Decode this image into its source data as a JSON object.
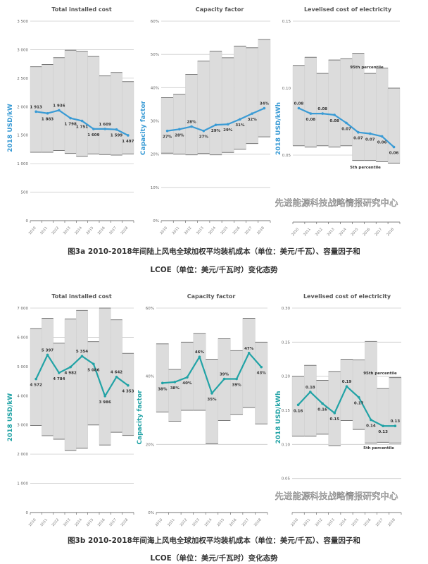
{
  "captions": {
    "fig3a_line1": "图3a  2010-2018年间陆上风电全球加权平均装机成本（单位：美元/千瓦）、容量因子和",
    "fig3a_line2": "LCOE（单位：美元/千瓦时）变化态势",
    "fig3b_line1": "图3b  2010-2018年间海上风电全球加权平均装机成本（单位：美元/千瓦）、容量因子和",
    "fig3b_line2": "LCOE（单位：美元/千瓦时）变化态势"
  },
  "watermark": "先进能源科技战略情报研究中心",
  "colors": {
    "onshore_line": "#3a9bd5",
    "offshore_line": "#22a3a6",
    "band": "#dcdcdc",
    "band_edge": "#777777",
    "grid": "#cccccc"
  },
  "chart_data": [
    {
      "type": "line",
      "title": "Total installed cost",
      "ylabel": "2018 USD/kW",
      "ylim": [
        0,
        3500
      ],
      "yticks": [
        0,
        500,
        1000,
        1500,
        2000,
        2500,
        3000,
        3500
      ],
      "ytick_labels": [
        "0",
        "500",
        "1 000",
        "1 500",
        "2 000",
        "2 500",
        "3 000",
        "3 500"
      ],
      "categories": [
        "2010",
        "2011",
        "2012",
        "2013",
        "2014",
        "2015",
        "2016",
        "2017",
        "2018"
      ],
      "values": [
        1913,
        1883,
        1936,
        1798,
        1751,
        1609,
        1609,
        1599,
        1497
      ],
      "labels": [
        "1 913",
        "1 883",
        "1 936",
        "1 798",
        "1 751",
        "1 609",
        "1 609",
        "1 599",
        "1 497"
      ],
      "upper": [
        2700,
        2740,
        2860,
        2990,
        2970,
        2880,
        2540,
        2600,
        2440
      ],
      "lower": [
        1200,
        1200,
        1230,
        1180,
        1130,
        1170,
        1160,
        1150,
        1170
      ],
      "grid": true
    },
    {
      "type": "line",
      "title": "Capacity factor",
      "ylabel": "Capacity factor",
      "ylim": [
        0,
        60
      ],
      "yticks": [
        0,
        10,
        20,
        30,
        40,
        50,
        60
      ],
      "ytick_labels": [
        "0%",
        "10%",
        "20%",
        "30%",
        "40%",
        "50%",
        "60%"
      ],
      "categories": [
        "2010",
        "2011",
        "2012",
        "2013",
        "2014",
        "2015",
        "2016",
        "2017",
        "2018"
      ],
      "values": [
        27,
        27.5,
        28.3,
        27,
        28.8,
        29,
        30.5,
        32.2,
        33.8
      ],
      "labels": [
        "27%",
        "28%",
        "28%",
        "27%",
        "29%",
        "29%",
        "31%",
        "32%",
        "34%"
      ],
      "upper": [
        37,
        38,
        44,
        48,
        51,
        49,
        52.5,
        52,
        54.5
      ],
      "lower": [
        20.3,
        20,
        19.8,
        20.2,
        19.8,
        20.5,
        21.5,
        23.2,
        25.2
      ],
      "grid": true
    },
    {
      "type": "line",
      "title": "Levelised cost of electricity",
      "ylabel": "2018 USD/kWh",
      "ylim": [
        0,
        0.15
      ],
      "yticks": [
        0.05,
        0.1,
        0.15
      ],
      "ytick_labels": [
        "0.05",
        "0.10",
        "0.15"
      ],
      "categories": [
        "2010",
        "2011",
        "2012",
        "2013",
        "2014",
        "2015",
        "2016",
        "2017",
        "2018"
      ],
      "values": [
        0.085,
        0.081,
        0.081,
        0.08,
        0.074,
        0.067,
        0.066,
        0.064,
        0.056
      ],
      "labels": [
        "0.08",
        "0.08",
        "0.08",
        "0.08",
        "0.07",
        "0.07",
        "0.07",
        "0.06",
        "0.06"
      ],
      "upper": [
        0.117,
        0.123,
        0.111,
        0.121,
        0.122,
        0.126,
        0.111,
        0.115,
        0.1
      ],
      "lower": [
        0.057,
        0.056,
        0.057,
        0.056,
        0.057,
        0.046,
        0.046,
        0.045,
        0.044
      ],
      "annotations": [
        "95th percentile",
        "5th percentile"
      ],
      "grid": true
    },
    {
      "type": "line",
      "title": "Total installed cost",
      "ylabel": "2018 USD/kW",
      "ylim": [
        0,
        7000
      ],
      "yticks": [
        0,
        1000,
        2000,
        3000,
        4000,
        5000,
        6000,
        7000
      ],
      "ytick_labels": [
        "0",
        "1 000",
        "2 000",
        "3 000",
        "4 000",
        "5 000",
        "6 000",
        "7 000"
      ],
      "categories": [
        "2010",
        "2011",
        "2012",
        "2013",
        "2014",
        "2015",
        "2016",
        "2017",
        "2018"
      ],
      "values": [
        4572,
        5397,
        4784,
        4982,
        5354,
        5086,
        3986,
        4642,
        4353
      ],
      "labels": [
        "4 572",
        "5 397",
        "4 784",
        "4 982",
        "5 354",
        "5 086",
        "3 986",
        "4 642",
        "4 353"
      ],
      "upper": [
        6300,
        6650,
        5800,
        6630,
        6920,
        5850,
        7000,
        6600,
        5450
      ],
      "lower": [
        2980,
        2630,
        2510,
        2120,
        2200,
        3000,
        2310,
        2750,
        2640
      ],
      "grid": true
    },
    {
      "type": "line",
      "title": "Capacity factor",
      "ylabel": "Capacity factor",
      "ylim": [
        0,
        60
      ],
      "yticks": [
        0,
        20,
        40,
        60
      ],
      "ytick_labels": [
        "0%",
        "20%",
        "40%",
        "60%"
      ],
      "categories": [
        "2010",
        "2011",
        "2012",
        "2013",
        "2014",
        "2015",
        "2016",
        "2017",
        "2018"
      ],
      "values": [
        38,
        38.3,
        39.7,
        45.7,
        35,
        39.2,
        39.2,
        46.8,
        42.7
      ],
      "labels": [
        "38%",
        "38%",
        "40%",
        "46%",
        "35%",
        "39%",
        "39%",
        "47%",
        "43%"
      ],
      "upper": [
        49.5,
        42,
        50,
        52.5,
        45,
        51,
        47.5,
        57,
        50
      ],
      "lower": [
        29.5,
        26.8,
        30,
        30,
        20.2,
        27,
        28.8,
        30.8,
        26
      ],
      "grid": true
    },
    {
      "type": "line",
      "title": "Levelised cost of electricity",
      "ylabel": "2018 USD/kWh",
      "ylim": [
        0,
        0.3
      ],
      "yticks": [
        0.05,
        0.1,
        0.15,
        0.2,
        0.25,
        0.3
      ],
      "ytick_labels": [
        "0.05",
        "0.10",
        "0.15",
        "0.20",
        "0.25",
        "0.30"
      ],
      "categories": [
        "2010",
        "2011",
        "2012",
        "2013",
        "2014",
        "2015",
        "2016",
        "2017",
        "2018"
      ],
      "values": [
        0.158,
        0.177,
        0.16,
        0.146,
        0.185,
        0.169,
        0.136,
        0.127,
        0.127
      ],
      "labels": [
        "0.16",
        "0.18",
        "0.16",
        "0.15",
        "0.19",
        "0.17",
        "0.14",
        "0.13",
        "0.13"
      ],
      "upper": [
        0.2,
        0.216,
        0.194,
        0.207,
        0.225,
        0.224,
        0.251,
        0.182,
        0.198
      ],
      "lower": [
        0.112,
        0.112,
        0.115,
        0.098,
        0.135,
        0.122,
        0.102,
        0.103,
        0.102
      ],
      "annotations": [
        "95th percentile",
        "5th percentile"
      ],
      "grid": true
    }
  ]
}
